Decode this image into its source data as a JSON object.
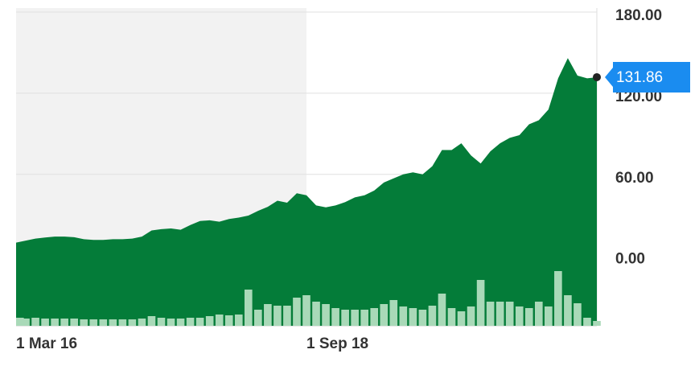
{
  "chart_data": {
    "type": "area",
    "categories": [
      "1 Mar 16",
      null,
      null,
      null,
      null,
      null,
      null,
      null,
      null,
      null,
      null,
      null,
      null,
      null,
      null,
      null,
      null,
      null,
      null,
      null,
      null,
      null,
      null,
      null,
      null,
      null,
      null,
      null,
      null,
      null,
      "1 Sep 18",
      null,
      null,
      null,
      null,
      null,
      null,
      null,
      null,
      null,
      null,
      null,
      null,
      null,
      null,
      null,
      null,
      null,
      null,
      null,
      null,
      null,
      null,
      null,
      null,
      null,
      null,
      null,
      null,
      null,
      null
    ],
    "series": [
      {
        "color": "#047c39",
        "values": [
          9.5,
          11,
          12.5,
          13.3,
          14,
          14,
          13.5,
          12,
          11.5,
          11.5,
          12,
          12,
          12.5,
          14,
          18.5,
          19.5,
          20,
          19,
          22.5,
          25.5,
          26,
          25,
          27,
          28,
          29.5,
          33,
          36,
          40.5,
          39,
          46,
          44.5,
          37,
          35.6,
          37,
          39.5,
          43,
          44.5,
          48,
          54,
          57,
          60,
          61.5,
          60,
          66,
          78,
          78,
          83,
          74,
          68,
          77,
          83,
          87,
          89,
          97,
          100,
          108,
          131,
          146,
          133,
          131,
          131.86
        ]
      },
      {
        "type": "bar",
        "color": "#a9d9b8",
        "values": [
          10,
          9,
          10,
          9,
          9,
          9,
          9,
          8,
          8,
          8,
          8,
          8,
          8,
          9,
          12,
          10,
          9,
          9,
          10,
          10,
          12,
          14,
          13,
          14,
          45,
          20,
          27,
          25,
          25,
          35,
          38,
          30,
          27,
          22,
          20,
          20,
          20,
          22,
          27,
          32,
          24,
          22,
          20,
          25,
          40,
          22,
          18,
          24,
          57,
          30,
          30,
          30,
          24,
          22,
          30,
          24,
          68,
          38,
          28,
          10,
          6
        ]
      }
    ],
    "ylim": [
      -52,
      183
    ],
    "yticks": [
      {
        "value": 0,
        "label": "0.00"
      },
      {
        "value": 60,
        "label": "60.00"
      },
      {
        "value": 120,
        "label": "120.00"
      },
      {
        "value": 180,
        "label": "180.00"
      }
    ],
    "grid": true
  }
}
